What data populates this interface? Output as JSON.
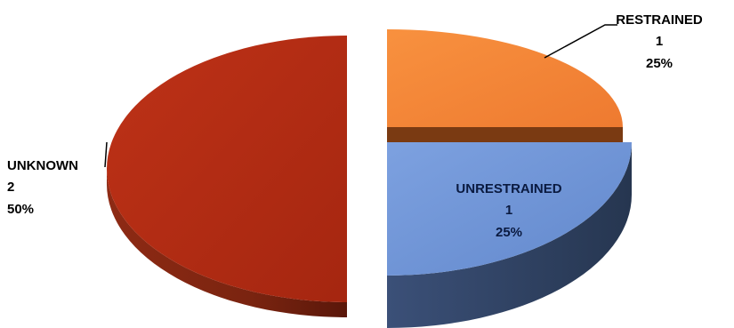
{
  "chart_data": {
    "type": "pie",
    "style": "3d-exploded",
    "slices": [
      {
        "label": "RESTRAINED",
        "value": 1,
        "percent": "25%",
        "color": "#F5853A",
        "side_color": "#7A3A12",
        "label_position": "outside-top-right"
      },
      {
        "label": "UNRESTRAINED",
        "value": 1,
        "percent": "25%",
        "color": "#7096D8",
        "side_color": "#2E3E5E",
        "label_position": "inside"
      },
      {
        "label": "UNKNOWN",
        "value": 2,
        "percent": "50%",
        "color": "#B22A12",
        "side_color": "#6A1A0C",
        "label_position": "outside-left"
      }
    ],
    "legend": "none"
  }
}
